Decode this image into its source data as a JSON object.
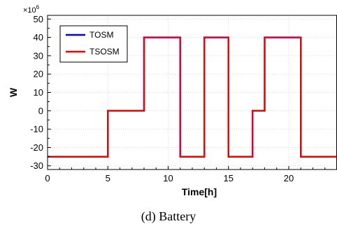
{
  "caption": "(d) Battery",
  "colors": {
    "TOSM": "#0000ff",
    "TSOSM": "#ff0000",
    "grid": "#d9d9d9"
  },
  "chart_data": {
    "type": "line",
    "xlabel": "Time[h]",
    "ylabel": "W",
    "y_multiplier": "×10",
    "y_multiplier_exp": "6",
    "xlim": [
      0,
      24
    ],
    "ylim": [
      -32,
      52
    ],
    "xticks": [
      0,
      5,
      10,
      15,
      20
    ],
    "xtick_labels": [
      "0",
      "5",
      "10",
      "15",
      "20"
    ],
    "yticks": [
      -30,
      -20,
      -10,
      0,
      10,
      20,
      30,
      40,
      50
    ],
    "ytick_labels": [
      "-30",
      "-20",
      "-10",
      "0",
      "10",
      "20",
      "30",
      "40",
      "50"
    ],
    "grid": true,
    "legend_position": "top-left",
    "series": [
      {
        "name": "TOSM",
        "x": [
          0,
          5,
          5,
          8,
          8,
          11,
          11,
          13,
          13,
          15,
          15,
          17,
          17,
          18,
          18,
          21,
          21,
          24
        ],
        "y": [
          -25,
          -25,
          0,
          0,
          40,
          40,
          -25,
          -25,
          40,
          40,
          -25,
          -25,
          0,
          0,
          40,
          40,
          -25,
          -25
        ]
      },
      {
        "name": "TSOSM",
        "x": [
          0,
          5,
          5,
          8,
          8,
          11,
          11,
          13,
          13,
          15,
          15,
          17,
          17,
          18,
          18,
          21,
          21,
          24
        ],
        "y": [
          -25,
          -25,
          0,
          0,
          40,
          40,
          -25,
          -25,
          40,
          40,
          -25,
          -25,
          0,
          0,
          40,
          40,
          -25,
          -25
        ]
      }
    ]
  }
}
